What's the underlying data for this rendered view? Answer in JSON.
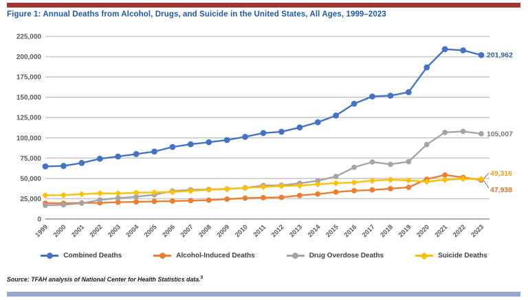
{
  "page": {
    "title": "Figure 1: Annual Deaths from Alcohol, Drugs, and Suicide in the United States, All Ages, 1999–2023",
    "title_color": "#1E5AA8",
    "accent_bar_top_color": "#A23532",
    "accent_bar_bottom_color": "#98A6D4",
    "source_text": "Source: TFAH analysis of National Center for Health Statistics data.",
    "source_superscript": "5"
  },
  "chart_data": {
    "type": "line",
    "title": "Figure 1: Annual Deaths from Alcohol, Drugs, and Suicide in the United States, All Ages, 1999–2023",
    "x": [
      "1999",
      "2000",
      "2001",
      "2002",
      "2003",
      "2004",
      "2005",
      "2006",
      "2007",
      "2008",
      "2009",
      "2010",
      "2011",
      "2012",
      "2013",
      "2014",
      "2015",
      "2016",
      "2017",
      "2018",
      "2019",
      "2020",
      "2021",
      "2022",
      "2023"
    ],
    "ylim": [
      0,
      225000
    ],
    "ytick_step": 25000,
    "ytick_labels": [
      "0",
      "25,000",
      "50,000",
      "75,000",
      "100,000",
      "125,000",
      "150,000",
      "175,000",
      "200,000",
      "225,000"
    ],
    "grid": "horizontal-only",
    "legend_position": "bottom",
    "axis_label_color": "#595959",
    "gridline_color": "#C9C9C9",
    "series": [
      {
        "name": "Combined Deaths",
        "color": "#4472C4",
        "marker": "circle",
        "end_label": "201,962",
        "end_label_color": "#2F5B9C",
        "values": [
          64785,
          65380,
          69000,
          74200,
          77000,
          80000,
          83100,
          88700,
          92100,
          94600,
          97300,
          101200,
          105900,
          107500,
          112800,
          119200,
          127500,
          142000,
          150999,
          151964,
          156242,
          186763,
          209225,
          207827,
          201962
        ]
      },
      {
        "name": "Alcohol-Induced Deaths",
        "color": "#ED7D31",
        "marker": "circle",
        "end_label": "47,938",
        "end_label_color": "#DD7127",
        "values": [
          19469,
          19358,
          19817,
          19928,
          20687,
          21081,
          21634,
          22073,
          22593,
          23199,
          24518,
          25692,
          26256,
          26654,
          29001,
          30722,
          33171,
          34865,
          35823,
          37329,
          39043,
          49061,
          54258,
          51191,
          47938
        ]
      },
      {
        "name": "Drug Overdose Deaths",
        "color": "#A5A5A5",
        "marker": "circle",
        "end_label": "105,007",
        "end_label_color": "#767676",
        "values": [
          16849,
          17415,
          19394,
          23518,
          25785,
          27424,
          29813,
          34425,
          36010,
          36450,
          37004,
          38329,
          41340,
          41502,
          43982,
          47055,
          52404,
          63632,
          70237,
          67367,
          70630,
          91799,
          106699,
          107941,
          105007
        ]
      },
      {
        "name": "Suicide Deaths",
        "color": "#FFC000",
        "marker": "diamond",
        "end_label": "49,316",
        "end_label_color": "#E5A021",
        "values": [
          29199,
          29350,
          30622,
          31655,
          31484,
          32439,
          32637,
          33300,
          34598,
          36035,
          36909,
          38364,
          39518,
          40600,
          41149,
          42773,
          44193,
          44965,
          47173,
          48344,
          47511,
          45979,
          48183,
          49476,
          49316
        ]
      }
    ]
  }
}
